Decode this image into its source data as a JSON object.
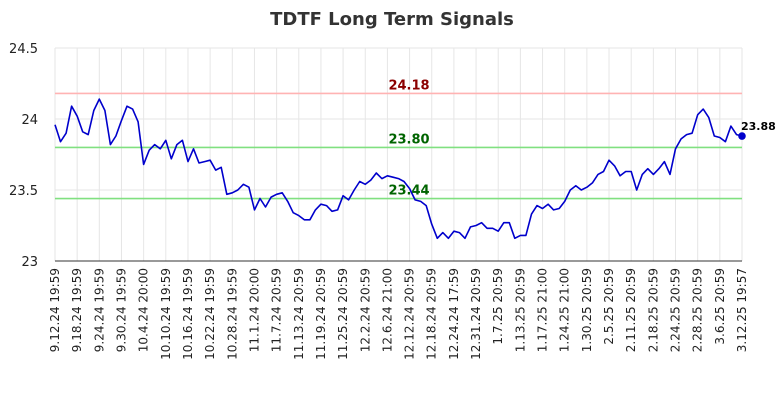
{
  "chart_data": {
    "type": "line",
    "title": "TDTF Long Term Signals",
    "xlabel": "",
    "ylabel": "",
    "ylim": [
      23,
      24.5
    ],
    "yticks": [
      "23",
      "23.5",
      "24",
      "24.5"
    ],
    "grid": true,
    "x_tick_labels": [
      "9.12.24 19:59",
      "9.18.24 19:59",
      "9.24.24 19:59",
      "9.30.24 19:59",
      "10.4.24 20:00",
      "10.10.24 19:59",
      "10.16.24 19:59",
      "10.22.24 19:59",
      "10.28.24 19:59",
      "11.1.24 20:00",
      "11.7.24 20:59",
      "11.13.24 20:59",
      "11.19.24 20:59",
      "11.25.24 20:59",
      "12.2.24 20:59",
      "12.6.24 21:00",
      "12.12.24 20:59",
      "12.18.24 20:59",
      "12.24.24 17:59",
      "12.31.24 20:59",
      "1.7.25 20:59",
      "1.13.25 20:59",
      "1.17.25 21:00",
      "1.24.25 21:00",
      "1.30.25 20:59",
      "2.5.25 20:59",
      "2.11.25 20:59",
      "2.18.25 20:59",
      "2.24.25 20:59",
      "2.28.25 20:59",
      "3.6.25 20:59",
      "3.12.25 19:57"
    ],
    "series": [
      {
        "values": [
          23.96,
          23.84,
          23.9,
          24.09,
          24.02,
          23.91,
          23.89,
          24.06,
          24.14,
          24.06,
          23.82,
          23.88,
          23.99,
          24.09,
          24.07,
          23.98,
          23.68,
          23.78,
          23.82,
          23.79,
          23.85,
          23.72,
          23.82,
          23.85,
          23.7,
          23.79,
          23.69,
          23.7,
          23.71,
          23.64,
          23.66,
          23.47,
          23.48,
          23.5,
          23.54,
          23.52,
          23.36,
          23.44,
          23.38,
          23.45,
          23.47,
          23.48,
          23.42,
          23.34,
          23.32,
          23.29,
          23.29,
          23.36,
          23.4,
          23.39,
          23.35,
          23.36,
          23.46,
          23.43,
          23.5,
          23.56,
          23.54,
          23.57,
          23.62,
          23.58,
          23.6,
          23.59,
          23.58,
          23.56,
          23.51,
          23.43,
          23.42,
          23.39,
          23.26,
          23.16,
          23.2,
          23.16,
          23.21,
          23.2,
          23.16,
          23.24,
          23.25,
          23.27,
          23.23,
          23.23,
          23.21,
          23.27,
          23.27,
          23.16,
          23.18,
          23.18,
          23.33,
          23.39,
          23.37,
          23.4,
          23.36,
          23.37,
          23.42,
          23.5,
          23.53,
          23.5,
          23.52,
          23.55,
          23.61,
          23.63,
          23.71,
          23.67,
          23.6,
          23.63,
          23.63,
          23.5,
          23.61,
          23.65,
          23.61,
          23.65,
          23.7,
          23.61,
          23.79,
          23.86,
          23.89,
          23.9,
          24.03,
          24.07,
          24.01,
          23.88,
          23.87,
          23.84,
          23.95,
          23.89,
          23.88
        ],
        "color": "#0000cc"
      }
    ],
    "reference_lines": [
      {
        "value": 24.18,
        "label": "24.18",
        "line_color": "#ffb3b3",
        "label_color": "#8b0000"
      },
      {
        "value": 23.8,
        "label": "23.80",
        "line_color": "#80e080",
        "label_color": "#006400"
      },
      {
        "value": 23.44,
        "label": "23.44",
        "line_color": "#80e080",
        "label_color": "#006400"
      }
    ],
    "last_value": {
      "value": 23.88,
      "label": "23.88"
    }
  }
}
